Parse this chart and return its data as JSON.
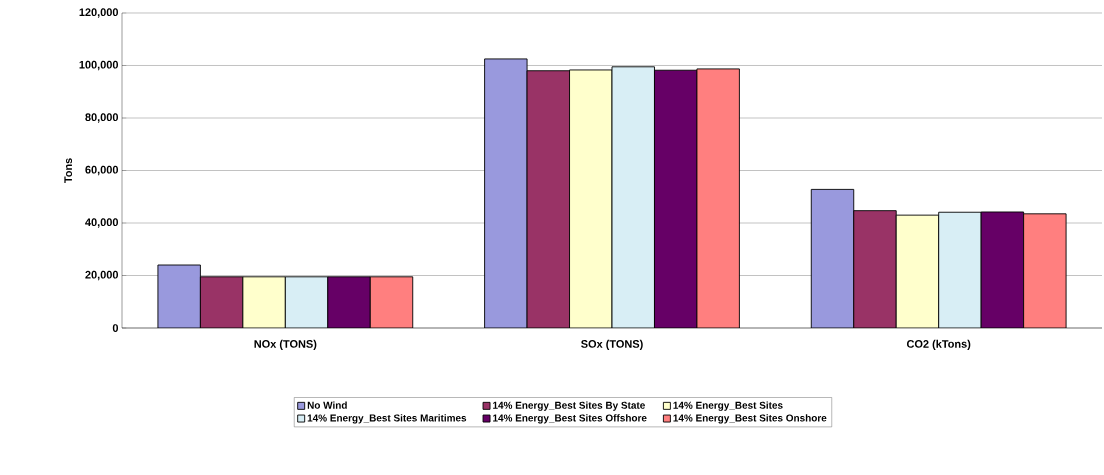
{
  "chart_data": {
    "type": "bar",
    "ylabel": "Tons",
    "categories": [
      "NOx (TONS)",
      "SOx (TONS)",
      "CO2 (kTons)"
    ],
    "series": [
      {
        "name": "No Wind",
        "color": "#9999dd",
        "values": [
          24000,
          102500,
          52800
        ]
      },
      {
        "name": "14% Energy_Best Sites By State",
        "color": "#993366",
        "values": [
          19500,
          98000,
          44700
        ]
      },
      {
        "name": "14% Energy_Best Sites",
        "color": "#ffffcc",
        "values": [
          19500,
          98300,
          43000
        ]
      },
      {
        "name": "14% Energy_Best Sites Maritimes",
        "color": "#d8eef5",
        "values": [
          19500,
          99500,
          44100
        ]
      },
      {
        "name": "14% Energy_Best Sites Offshore",
        "color": "#660066",
        "values": [
          19500,
          98200,
          44200
        ]
      },
      {
        "name": "14% Energy_Best Sites Onshore",
        "color": "#ff7f7f",
        "values": [
          19500,
          98700,
          43500
        ]
      }
    ],
    "ylim": [
      0,
      120000
    ],
    "yticks": [
      0,
      {
        "value": 20000,
        "label": "20,000"
      },
      {
        "value": 40000,
        "label": "40,000"
      },
      {
        "value": 60000,
        "label": "60,000"
      },
      {
        "value": 80000,
        "label": "80,000"
      },
      {
        "value": 100000,
        "label": "100,000"
      },
      {
        "value": 120000,
        "label": "120,000"
      }
    ],
    "grid": "y",
    "legend": "bottom"
  }
}
